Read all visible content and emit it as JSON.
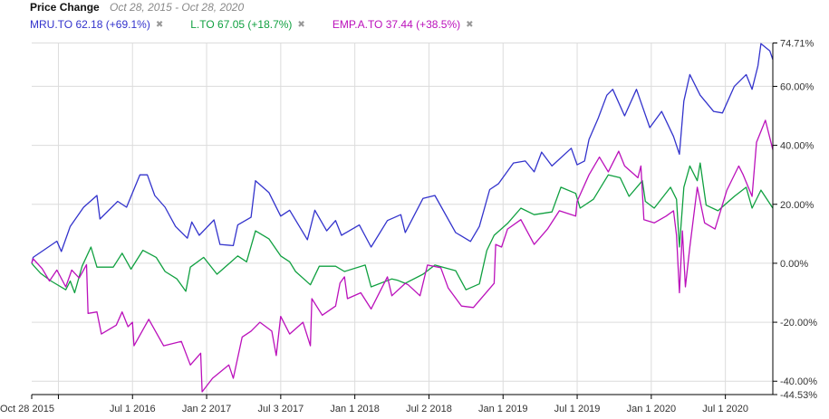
{
  "header": {
    "title": "Price Change",
    "range": "Oct 28, 2015 - Oct 28, 2020"
  },
  "legend": [
    {
      "label": "MRU.TO 62.18 (+69.1%)",
      "remove": "✖",
      "color": "#3333cc"
    },
    {
      "label": "L.TO 67.05 (+18.7%)",
      "remove": "✖",
      "color": "#10a040"
    },
    {
      "label": "EMP.A.TO 37.44 (+38.5%)",
      "remove": "✖",
      "color": "#bb11bb"
    }
  ],
  "chart_data": {
    "type": "line",
    "title": "Price Change",
    "xlabel": "",
    "ylabel": "",
    "xlim": [
      2015.82,
      2020.82
    ],
    "ylim": [
      -44.53,
      74.71
    ],
    "grid": true,
    "y_ticks": [
      {
        "v": 74.71,
        "label": "74.71%"
      },
      {
        "v": 60,
        "label": "60.00%"
      },
      {
        "v": 40,
        "label": "40.00%"
      },
      {
        "v": 20,
        "label": "20.00%"
      },
      {
        "v": 0,
        "label": "0.00%"
      },
      {
        "v": -20,
        "label": "-20.00%"
      },
      {
        "v": -40,
        "label": "-40.00%"
      },
      {
        "v": -44.53,
        "label": "-44.53%"
      }
    ],
    "x_ticks": [
      {
        "v": 2015.82,
        "label": "Oct 28 2015",
        "anchor": "start"
      },
      {
        "v": 2016.0,
        "label": ""
      },
      {
        "v": 2016.5,
        "label": "Jul 1 2016"
      },
      {
        "v": 2017.0,
        "label": "Jan 2 2017"
      },
      {
        "v": 2017.5,
        "label": "Jul 3 2017"
      },
      {
        "v": 2018.0,
        "label": "Jan 1 2018"
      },
      {
        "v": 2018.5,
        "label": "Jul 2 2018"
      },
      {
        "v": 2019.0,
        "label": "Jan 1 2019"
      },
      {
        "v": 2019.5,
        "label": "Jul 1 2019"
      },
      {
        "v": 2020.0,
        "label": "Jan 1 2020"
      },
      {
        "v": 2020.5,
        "label": "Jul 1 2020"
      }
    ],
    "series": [
      {
        "name": "MRU.TO",
        "color": "#3333cc",
        "points": [
          [
            2015.82,
            0
          ],
          [
            2015.83,
            2
          ],
          [
            2015.99,
            7.5
          ],
          [
            2016.02,
            4
          ],
          [
            2016.08,
            12.5
          ],
          [
            2016.17,
            19
          ],
          [
            2016.26,
            23
          ],
          [
            2016.28,
            15
          ],
          [
            2016.4,
            21
          ],
          [
            2016.46,
            19
          ],
          [
            2016.55,
            30
          ],
          [
            2016.6,
            30
          ],
          [
            2016.65,
            23
          ],
          [
            2016.72,
            19
          ],
          [
            2016.79,
            12.5
          ],
          [
            2016.87,
            8.5
          ],
          [
            2016.9,
            14
          ],
          [
            2016.95,
            9.5
          ],
          [
            2017.05,
            14.7
          ],
          [
            2017.09,
            6.4
          ],
          [
            2017.18,
            6
          ],
          [
            2017.21,
            13
          ],
          [
            2017.3,
            15.6
          ],
          [
            2017.33,
            28
          ],
          [
            2017.42,
            24
          ],
          [
            2017.5,
            16
          ],
          [
            2017.56,
            18
          ],
          [
            2017.68,
            8
          ],
          [
            2017.73,
            18
          ],
          [
            2017.81,
            11
          ],
          [
            2017.87,
            14.5
          ],
          [
            2017.91,
            9.5
          ],
          [
            2018.03,
            13
          ],
          [
            2018.11,
            5.5
          ],
          [
            2018.22,
            14.5
          ],
          [
            2018.31,
            16.5
          ],
          [
            2018.34,
            10.4
          ],
          [
            2018.46,
            22
          ],
          [
            2018.54,
            23
          ],
          [
            2018.68,
            10.4
          ],
          [
            2018.78,
            7.4
          ],
          [
            2018.84,
            12.5
          ],
          [
            2018.91,
            25
          ],
          [
            2018.97,
            27
          ],
          [
            2019.07,
            34
          ],
          [
            2019.15,
            34.7
          ],
          [
            2019.21,
            31
          ],
          [
            2019.26,
            37.7
          ],
          [
            2019.33,
            33
          ],
          [
            2019.46,
            39
          ],
          [
            2019.5,
            33.4
          ],
          [
            2019.55,
            34.7
          ],
          [
            2019.58,
            42
          ],
          [
            2019.64,
            49
          ],
          [
            2019.7,
            57
          ],
          [
            2019.74,
            59
          ],
          [
            2019.82,
            50
          ],
          [
            2019.9,
            59
          ],
          [
            2019.99,
            46
          ],
          [
            2020.07,
            51.5
          ],
          [
            2020.15,
            43
          ],
          [
            2020.19,
            37
          ],
          [
            2020.22,
            55
          ],
          [
            2020.26,
            64
          ],
          [
            2020.33,
            57
          ],
          [
            2020.42,
            51.5
          ],
          [
            2020.48,
            51
          ],
          [
            2020.56,
            60
          ],
          [
            2020.64,
            64
          ],
          [
            2020.68,
            59
          ],
          [
            2020.72,
            67
          ],
          [
            2020.74,
            74.5
          ],
          [
            2020.8,
            72
          ],
          [
            2020.82,
            69.1
          ]
        ]
      },
      {
        "name": "L.TO",
        "color": "#10a040",
        "points": [
          [
            2015.82,
            0
          ],
          [
            2015.83,
            -0.6
          ],
          [
            2015.88,
            -3.4
          ],
          [
            2015.95,
            -6
          ],
          [
            2016.05,
            -9
          ],
          [
            2016.08,
            -6
          ],
          [
            2016.11,
            -10
          ],
          [
            2016.16,
            -1
          ],
          [
            2016.22,
            5.5
          ],
          [
            2016.26,
            -1.3
          ],
          [
            2016.37,
            -1.3
          ],
          [
            2016.43,
            3.4
          ],
          [
            2016.49,
            -2
          ],
          [
            2016.57,
            4.4
          ],
          [
            2016.66,
            2
          ],
          [
            2016.72,
            -2.8
          ],
          [
            2016.8,
            -5.3
          ],
          [
            2016.86,
            -9.5
          ],
          [
            2016.89,
            -1.3
          ],
          [
            2016.98,
            2
          ],
          [
            2017.07,
            -3.7
          ],
          [
            2017.21,
            2.5
          ],
          [
            2017.27,
            0.5
          ],
          [
            2017.33,
            11
          ],
          [
            2017.42,
            8.3
          ],
          [
            2017.5,
            2.5
          ],
          [
            2017.56,
            0.5
          ],
          [
            2017.6,
            -2.8
          ],
          [
            2017.7,
            -7.3
          ],
          [
            2017.76,
            -1
          ],
          [
            2017.87,
            -1
          ],
          [
            2017.93,
            -2.8
          ],
          [
            2018.07,
            -0.6
          ],
          [
            2018.11,
            -8
          ],
          [
            2018.25,
            -5.3
          ],
          [
            2018.29,
            -5.8
          ],
          [
            2018.34,
            -6.8
          ],
          [
            2018.46,
            -3.7
          ],
          [
            2018.54,
            -0.6
          ],
          [
            2018.68,
            -2.5
          ],
          [
            2018.75,
            -9
          ],
          [
            2018.84,
            -7
          ],
          [
            2018.89,
            4.3
          ],
          [
            2018.94,
            9.5
          ],
          [
            2019.03,
            13.5
          ],
          [
            2019.12,
            18.7
          ],
          [
            2019.21,
            16.5
          ],
          [
            2019.33,
            17.4
          ],
          [
            2019.39,
            25.8
          ],
          [
            2019.49,
            23.7
          ],
          [
            2019.52,
            18.7
          ],
          [
            2019.61,
            21.7
          ],
          [
            2019.71,
            30
          ],
          [
            2019.79,
            29
          ],
          [
            2019.85,
            22.7
          ],
          [
            2019.94,
            28
          ],
          [
            2019.96,
            21
          ],
          [
            2020.02,
            18.7
          ],
          [
            2020.13,
            25.8
          ],
          [
            2020.17,
            21.7
          ],
          [
            2020.19,
            5.5
          ],
          [
            2020.22,
            25.8
          ],
          [
            2020.26,
            33
          ],
          [
            2020.31,
            28
          ],
          [
            2020.33,
            34
          ],
          [
            2020.37,
            19.7
          ],
          [
            2020.45,
            17.8
          ],
          [
            2020.56,
            22.7
          ],
          [
            2020.64,
            25.8
          ],
          [
            2020.68,
            18.7
          ],
          [
            2020.74,
            24.8
          ],
          [
            2020.82,
            18.7
          ]
        ]
      },
      {
        "name": "EMP.A.TO",
        "color": "#bb11bb",
        "points": [
          [
            2015.82,
            0
          ],
          [
            2015.83,
            1.5
          ],
          [
            2015.89,
            -1.8
          ],
          [
            2015.94,
            -6
          ],
          [
            2015.99,
            -2.3
          ],
          [
            2016.05,
            -8
          ],
          [
            2016.09,
            -2.3
          ],
          [
            2016.14,
            -5
          ],
          [
            2016.19,
            -0.5
          ],
          [
            2016.2,
            -17
          ],
          [
            2016.26,
            -16.5
          ],
          [
            2016.29,
            -24
          ],
          [
            2016.39,
            -21
          ],
          [
            2016.43,
            -16.5
          ],
          [
            2016.47,
            -21.5
          ],
          [
            2016.5,
            -20
          ],
          [
            2016.51,
            -28
          ],
          [
            2016.61,
            -19
          ],
          [
            2016.71,
            -28
          ],
          [
            2016.83,
            -26.5
          ],
          [
            2016.89,
            -34.5
          ],
          [
            2016.96,
            -30.5
          ],
          [
            2016.97,
            -43.6
          ],
          [
            2017.04,
            -39
          ],
          [
            2017.15,
            -34.5
          ],
          [
            2017.18,
            -39
          ],
          [
            2017.24,
            -25
          ],
          [
            2017.3,
            -23
          ],
          [
            2017.36,
            -20
          ],
          [
            2017.44,
            -23
          ],
          [
            2017.47,
            -31.3
          ],
          [
            2017.5,
            -18
          ],
          [
            2017.56,
            -24
          ],
          [
            2017.65,
            -20
          ],
          [
            2017.7,
            -28
          ],
          [
            2017.71,
            -12
          ],
          [
            2017.78,
            -17.6
          ],
          [
            2017.87,
            -14.5
          ],
          [
            2017.9,
            -6.7
          ],
          [
            2017.93,
            -4.6
          ],
          [
            2017.95,
            -12
          ],
          [
            2018.04,
            -10
          ],
          [
            2018.11,
            -15.5
          ],
          [
            2018.22,
            -4.6
          ],
          [
            2018.25,
            -11
          ],
          [
            2018.34,
            -6.8
          ],
          [
            2018.36,
            -7.3
          ],
          [
            2018.44,
            -11
          ],
          [
            2018.49,
            -0.6
          ],
          [
            2018.58,
            -1.5
          ],
          [
            2018.63,
            -8.4
          ],
          [
            2018.72,
            -14.5
          ],
          [
            2018.8,
            -15
          ],
          [
            2018.94,
            -6.8
          ],
          [
            2018.95,
            6.4
          ],
          [
            2018.99,
            5.5
          ],
          [
            2019.03,
            11.6
          ],
          [
            2019.12,
            14.8
          ],
          [
            2019.21,
            6.4
          ],
          [
            2019.3,
            11.6
          ],
          [
            2019.38,
            17.8
          ],
          [
            2019.49,
            16
          ],
          [
            2019.5,
            21
          ],
          [
            2019.58,
            30
          ],
          [
            2019.65,
            36
          ],
          [
            2019.71,
            31
          ],
          [
            2019.78,
            38
          ],
          [
            2019.82,
            33
          ],
          [
            2019.91,
            29
          ],
          [
            2019.93,
            33
          ],
          [
            2019.95,
            14.8
          ],
          [
            2020.02,
            13.7
          ],
          [
            2020.1,
            16
          ],
          [
            2020.15,
            17.8
          ],
          [
            2020.17,
            9.5
          ],
          [
            2020.19,
            -10
          ],
          [
            2020.21,
            11
          ],
          [
            2020.23,
            -8
          ],
          [
            2020.26,
            5.5
          ],
          [
            2020.31,
            25.8
          ],
          [
            2020.36,
            13.7
          ],
          [
            2020.43,
            11.6
          ],
          [
            2020.51,
            24.8
          ],
          [
            2020.59,
            33
          ],
          [
            2020.62,
            30
          ],
          [
            2020.68,
            22.7
          ],
          [
            2020.71,
            41
          ],
          [
            2020.77,
            48.5
          ],
          [
            2020.82,
            38.5
          ]
        ]
      }
    ]
  }
}
